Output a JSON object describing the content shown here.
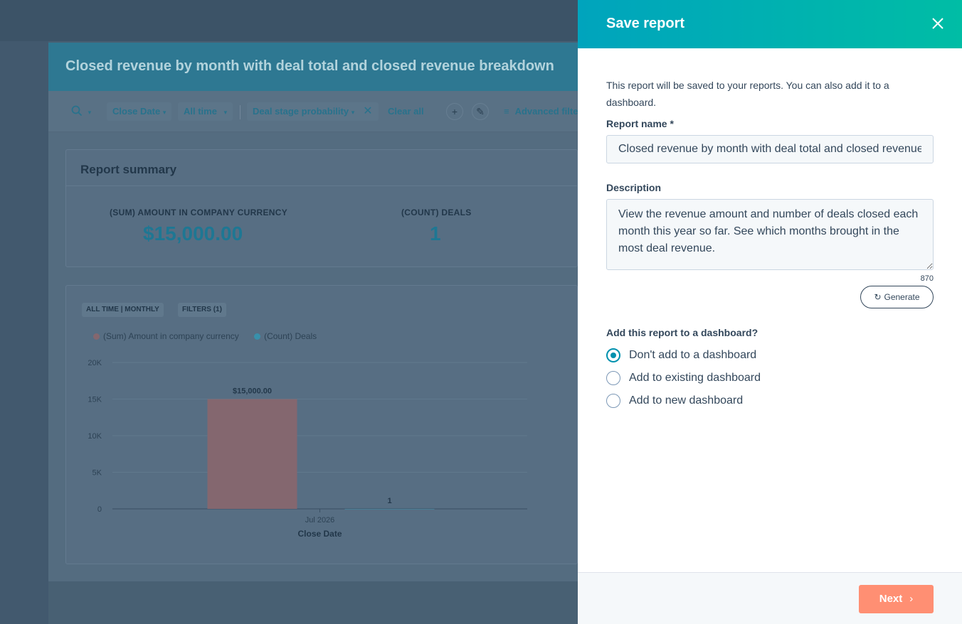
{
  "report_editor": {
    "title": "Closed revenue by month with deal total and closed revenue breakdown",
    "filters": {
      "close_date": "Close Date",
      "all_time": "All time",
      "deal_stage_probability": "Deal stage probability",
      "clear_all": "Clear all",
      "advanced_filters": "Advanced filte"
    },
    "summary": {
      "title": "Report summary",
      "kpis": [
        {
          "label": "(SUM) AMOUNT IN COMPANY CURRENCY",
          "value": "$15,000.00"
        },
        {
          "label": "(COUNT) DEALS",
          "value": "1"
        }
      ]
    },
    "chart_tags": [
      "ALL TIME | MONTHLY",
      "FILTERS (1)"
    ]
  },
  "chart_data": {
    "type": "bar",
    "categories": [
      "Jul 2026"
    ],
    "series": [
      {
        "name": "(Sum) Amount in company currency",
        "values": [
          15000
        ],
        "data_label": "$15,000.00",
        "color": "#8e6c74"
      },
      {
        "name": "(Count) Deals",
        "values": [
          1
        ],
        "data_label": "1",
        "color": "#3b98b5"
      }
    ],
    "xlabel": "Close Date",
    "ylabel": "",
    "ylim": [
      0,
      20000
    ],
    "yticks": [
      "0",
      "5K",
      "10K",
      "15K",
      "20K"
    ],
    "grid": true,
    "legend": "top-left"
  },
  "panel": {
    "title": "Save report",
    "intro": "This report will be saved to your reports. You can also add it to a dashboard.",
    "report_name_label": "Report name *",
    "report_name_value": "Closed revenue by month with deal total and closed revenue breakdown",
    "description_label": "Description",
    "description_value": "View the revenue amount and number of deals closed each month this year so far. See which months brought in the most deal revenue.",
    "char_count": "870",
    "generate_label": "Generate",
    "dashboard_question": "Add this report to a dashboard?",
    "dashboard_options": [
      {
        "label": "Don't add to a dashboard",
        "selected": true
      },
      {
        "label": "Add to existing dashboard",
        "selected": false
      },
      {
        "label": "Add to new dashboard",
        "selected": false
      }
    ],
    "next_label": "Next"
  },
  "colors": {
    "header_gradient_start": "#00a4bd",
    "header_gradient_end": "#00bda5",
    "next_button": "#ff8f73",
    "radio_selected": "#0091ae"
  }
}
